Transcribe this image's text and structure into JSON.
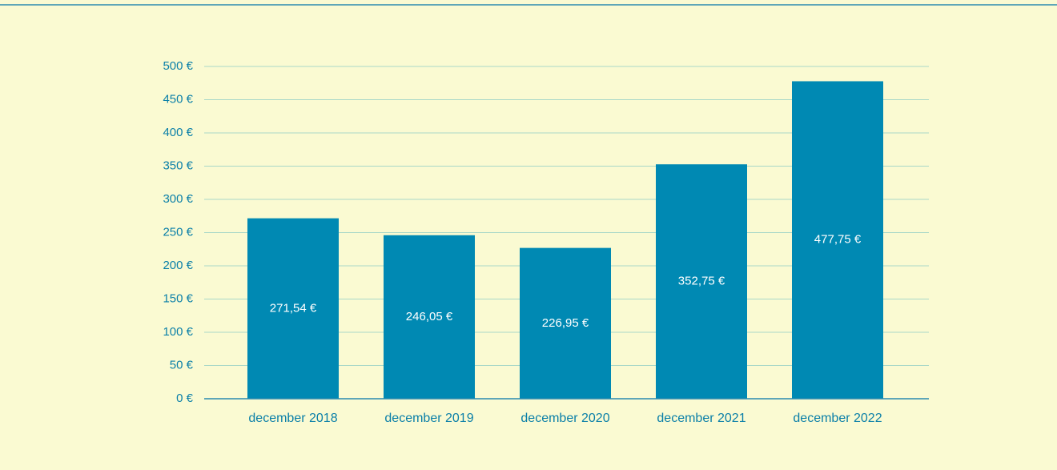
{
  "chart_data": {
    "type": "bar",
    "categories": [
      "december 2018",
      "december 2019",
      "december 2020",
      "december 2021",
      "december 2022"
    ],
    "values": [
      271.54,
      246.05,
      226.95,
      352.75,
      477.75
    ],
    "value_labels": [
      "271,54 €",
      "246,05 €",
      "226,95 €",
      "352,75 €",
      "477,75 €"
    ],
    "color": "#0089b3",
    "ylim": [
      0,
      500
    ],
    "yticks": [
      {
        "value": 0,
        "label": "0 €"
      },
      {
        "value": 50,
        "label": "50 €"
      },
      {
        "value": 100,
        "label": "100 €"
      },
      {
        "value": 150,
        "label": "150 €"
      },
      {
        "value": 200,
        "label": "200 €"
      },
      {
        "value": 250,
        "label": "250 €"
      },
      {
        "value": 300,
        "label": "300 €"
      },
      {
        "value": 350,
        "label": "350 €"
      },
      {
        "value": 400,
        "label": "400 €"
      },
      {
        "value": 450,
        "label": "450 €"
      },
      {
        "value": 500,
        "label": "500 €"
      }
    ],
    "grid": true
  }
}
